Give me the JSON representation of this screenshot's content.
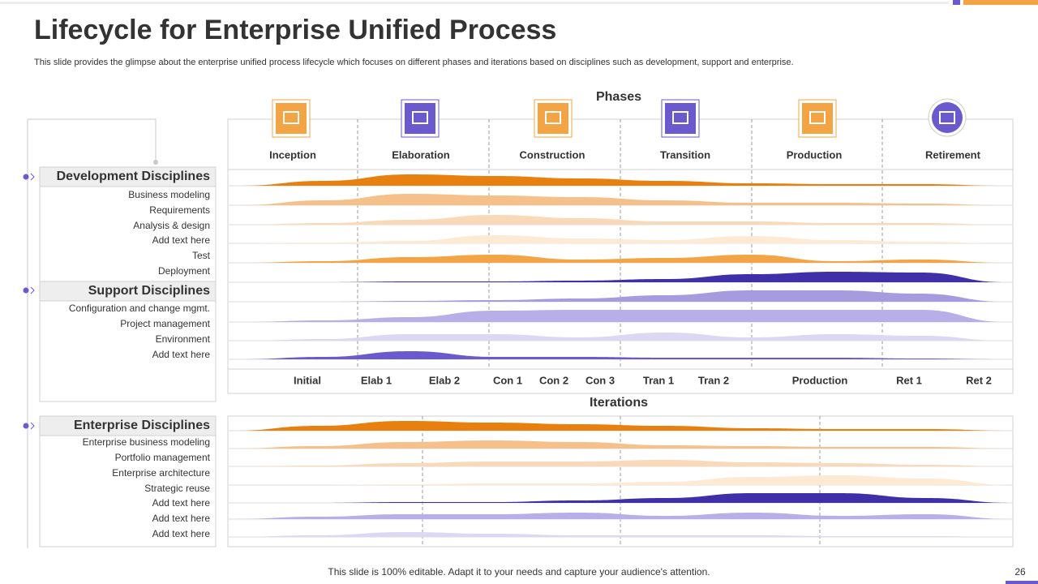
{
  "header": {
    "title": "Lifecycle for Enterprise Unified Process",
    "subtitle": "This slide provides the glimpse about the enterprise unified process lifecycle which focuses on different phases and iterations based on disciplines such as development, support and enterprise."
  },
  "phases": {
    "heading": "Phases",
    "items": [
      "Inception",
      "Elaboration",
      "Construction",
      "Transition",
      "Production",
      "Retirement"
    ]
  },
  "iterations": {
    "heading": "Iterations",
    "items": [
      "Initial",
      "Elab 1",
      "Elab 2",
      "Con 1",
      "Con 2",
      "Con 3",
      "Tran 1",
      "Tran 2",
      "Production",
      "Ret 1",
      "Ret 2"
    ]
  },
  "groups": {
    "development": {
      "title": "Development Disciplines",
      "items": [
        "Business modeling",
        "Requirements",
        "Analysis & design",
        "Add text here",
        "Test",
        "Deployment"
      ]
    },
    "support": {
      "title": "Support Disciplines",
      "items": [
        "Configuration and change mgmt.",
        "Project management",
        "Environment",
        "Add text here"
      ]
    },
    "enterprise": {
      "title": "Enterprise Disciplines",
      "items": [
        "Enterprise business modeling",
        "Portfolio management",
        "Enterprise architecture",
        "Strategic reuse",
        "Add text here",
        "Add text here",
        "Add text here"
      ]
    }
  },
  "footer": {
    "note": "This slide is 100% editable. Adapt it to your needs and capture your audience's attention.",
    "page": "26"
  }
}
